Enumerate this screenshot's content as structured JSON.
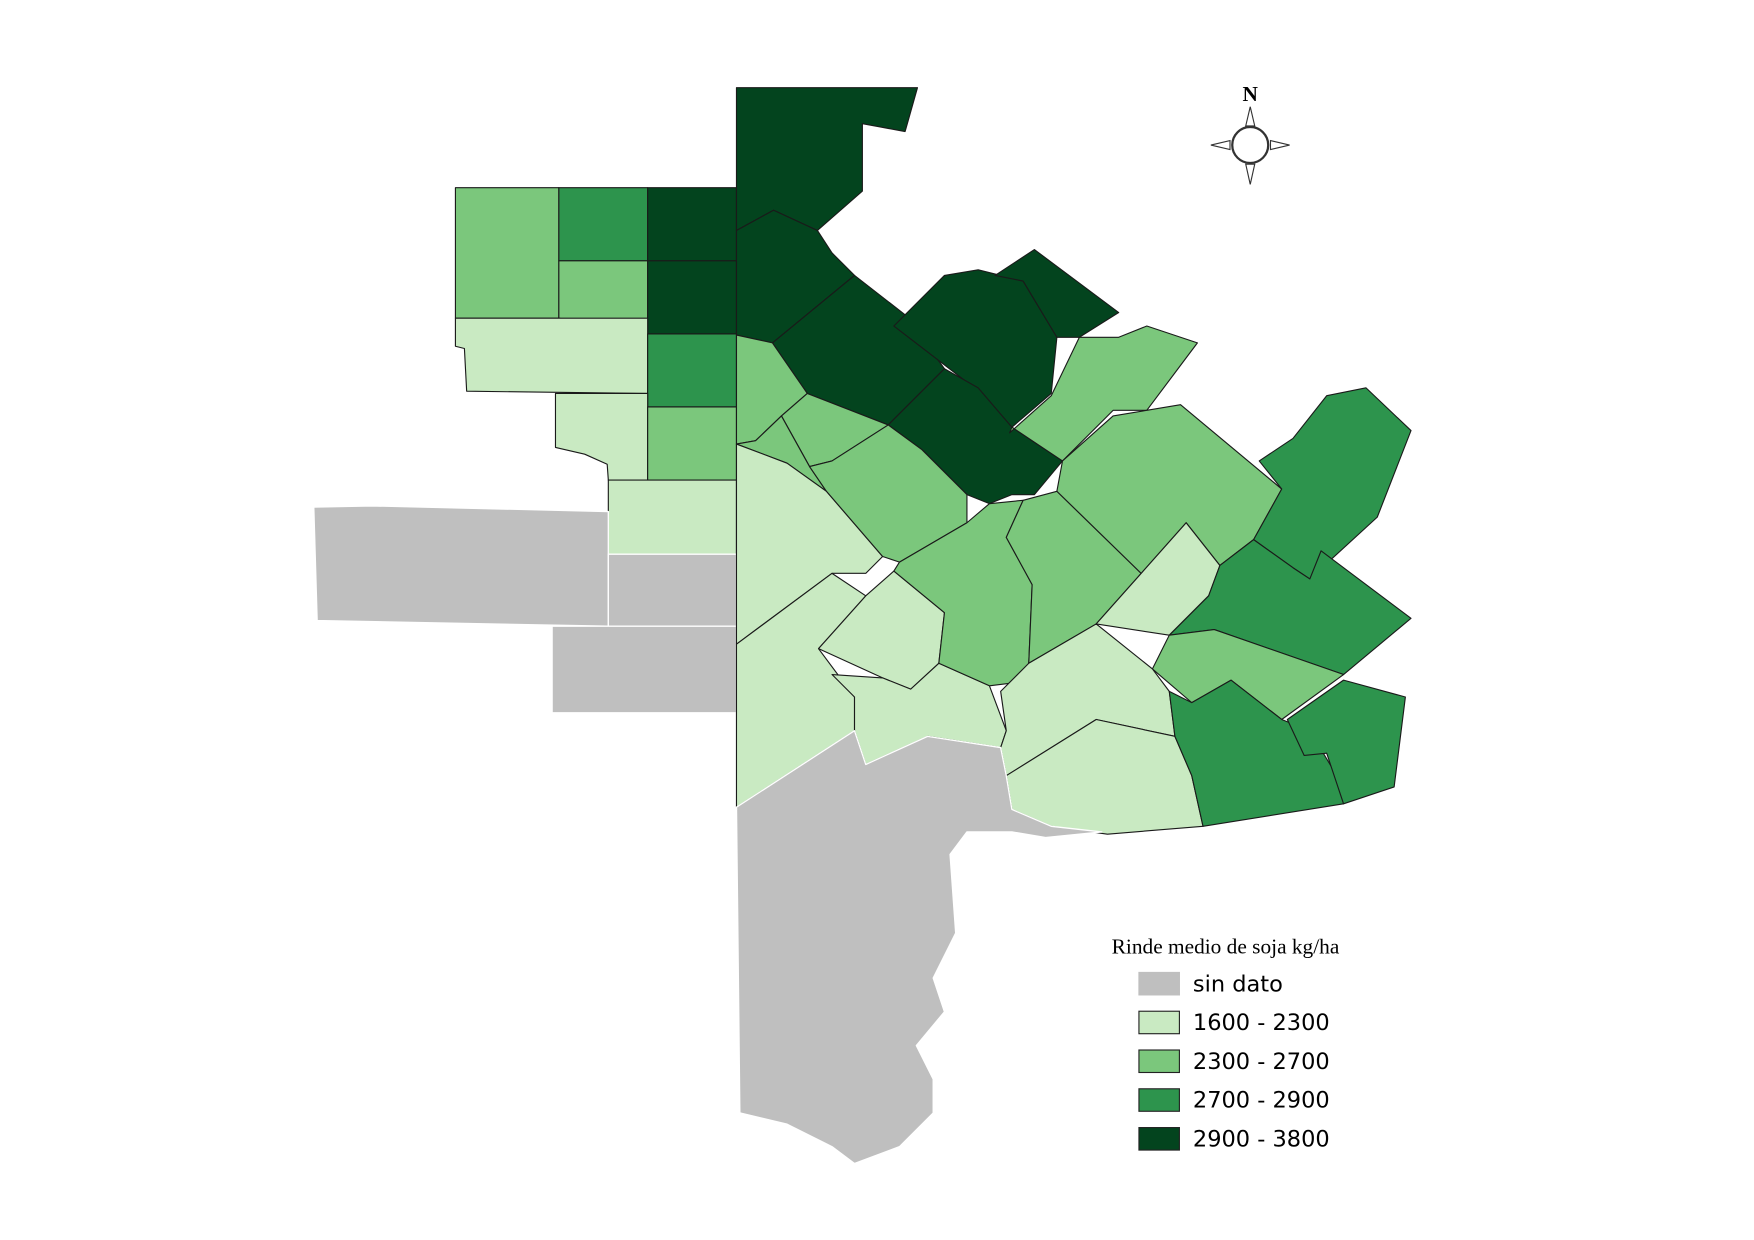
{
  "north_label": "N",
  "legend": {
    "title": "Rinde medio de soja kg/ha",
    "items": [
      {
        "label": "sin dato",
        "color": "#bfbfbf"
      },
      {
        "label": "1600 - 2300",
        "color": "#c9eac2"
      },
      {
        "label": "2300 - 2700",
        "color": "#7bc77c"
      },
      {
        "label": "2700 - 2900",
        "color": "#2d944d"
      },
      {
        "label": "2900 - 3800",
        "color": "#03441e"
      }
    ]
  }
}
